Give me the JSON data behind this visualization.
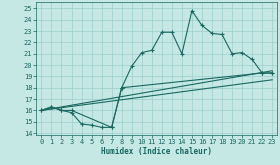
{
  "background_color": "#c5e8e5",
  "grid_color": "#9ececa",
  "line_color": "#1a6860",
  "xlim": [
    -0.5,
    23.5
  ],
  "ylim": [
    13.8,
    25.6
  ],
  "yticks": [
    14,
    15,
    16,
    17,
    18,
    19,
    20,
    21,
    22,
    23,
    24,
    25
  ],
  "xticks": [
    0,
    1,
    2,
    3,
    4,
    5,
    6,
    7,
    8,
    9,
    10,
    11,
    12,
    13,
    14,
    15,
    16,
    17,
    18,
    19,
    20,
    21,
    22,
    23
  ],
  "xlabel": "Humidex (Indice chaleur)",
  "line1_x": [
    0,
    1,
    2,
    3,
    4,
    5,
    6,
    7,
    8,
    9,
    10,
    11,
    12,
    13,
    14,
    15,
    16,
    17,
    18,
    19,
    20,
    21,
    22,
    23
  ],
  "line1_y": [
    16.0,
    16.3,
    16.0,
    15.8,
    14.8,
    14.7,
    14.5,
    14.5,
    18.0,
    19.9,
    21.1,
    21.3,
    22.9,
    22.9,
    21.0,
    24.8,
    23.5,
    22.8,
    22.7,
    21.0,
    21.1,
    20.5,
    19.3,
    19.3
  ],
  "line2_x": [
    0,
    1,
    2,
    3,
    7,
    8,
    22,
    23
  ],
  "line2_y": [
    16.0,
    16.3,
    16.0,
    16.0,
    14.5,
    18.0,
    19.3,
    19.3
  ],
  "line3_x": [
    0,
    23
  ],
  "line3_y": [
    16.0,
    19.5
  ],
  "line4_x": [
    0,
    23
  ],
  "line4_y": [
    16.0,
    18.7
  ]
}
